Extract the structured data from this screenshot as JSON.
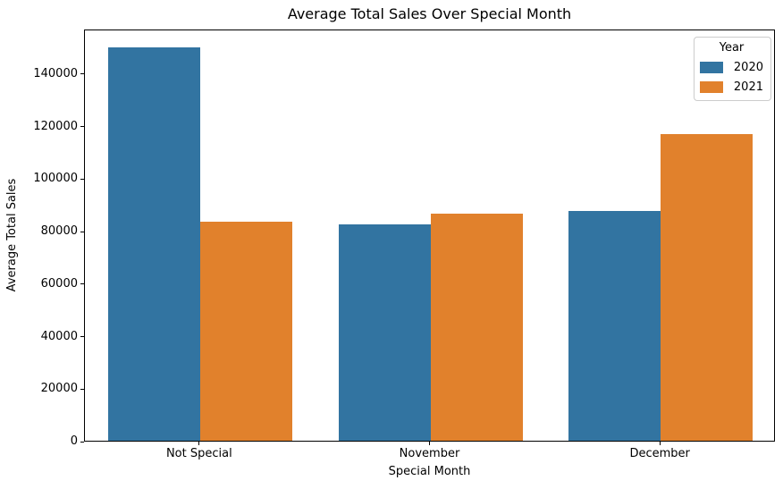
{
  "chart_data": {
    "type": "bar",
    "title": "Average Total Sales Over Special Month",
    "xlabel": "Special Month",
    "ylabel": "Average Total Sales",
    "categories": [
      "Not Special",
      "November",
      "December"
    ],
    "series": [
      {
        "name": "2020",
        "color": "#3274a1",
        "values": [
          150000,
          82300,
          87600
        ]
      },
      {
        "name": "2021",
        "color": "#e1812c",
        "values": [
          83600,
          86400,
          116900
        ]
      }
    ],
    "ylim": [
      0,
      157000
    ],
    "yticks": [
      0,
      20000,
      40000,
      60000,
      80000,
      100000,
      120000,
      140000
    ],
    "grid": false,
    "legend": {
      "title": "Year",
      "position": "upper right",
      "entries": [
        "2020",
        "2021"
      ]
    }
  }
}
